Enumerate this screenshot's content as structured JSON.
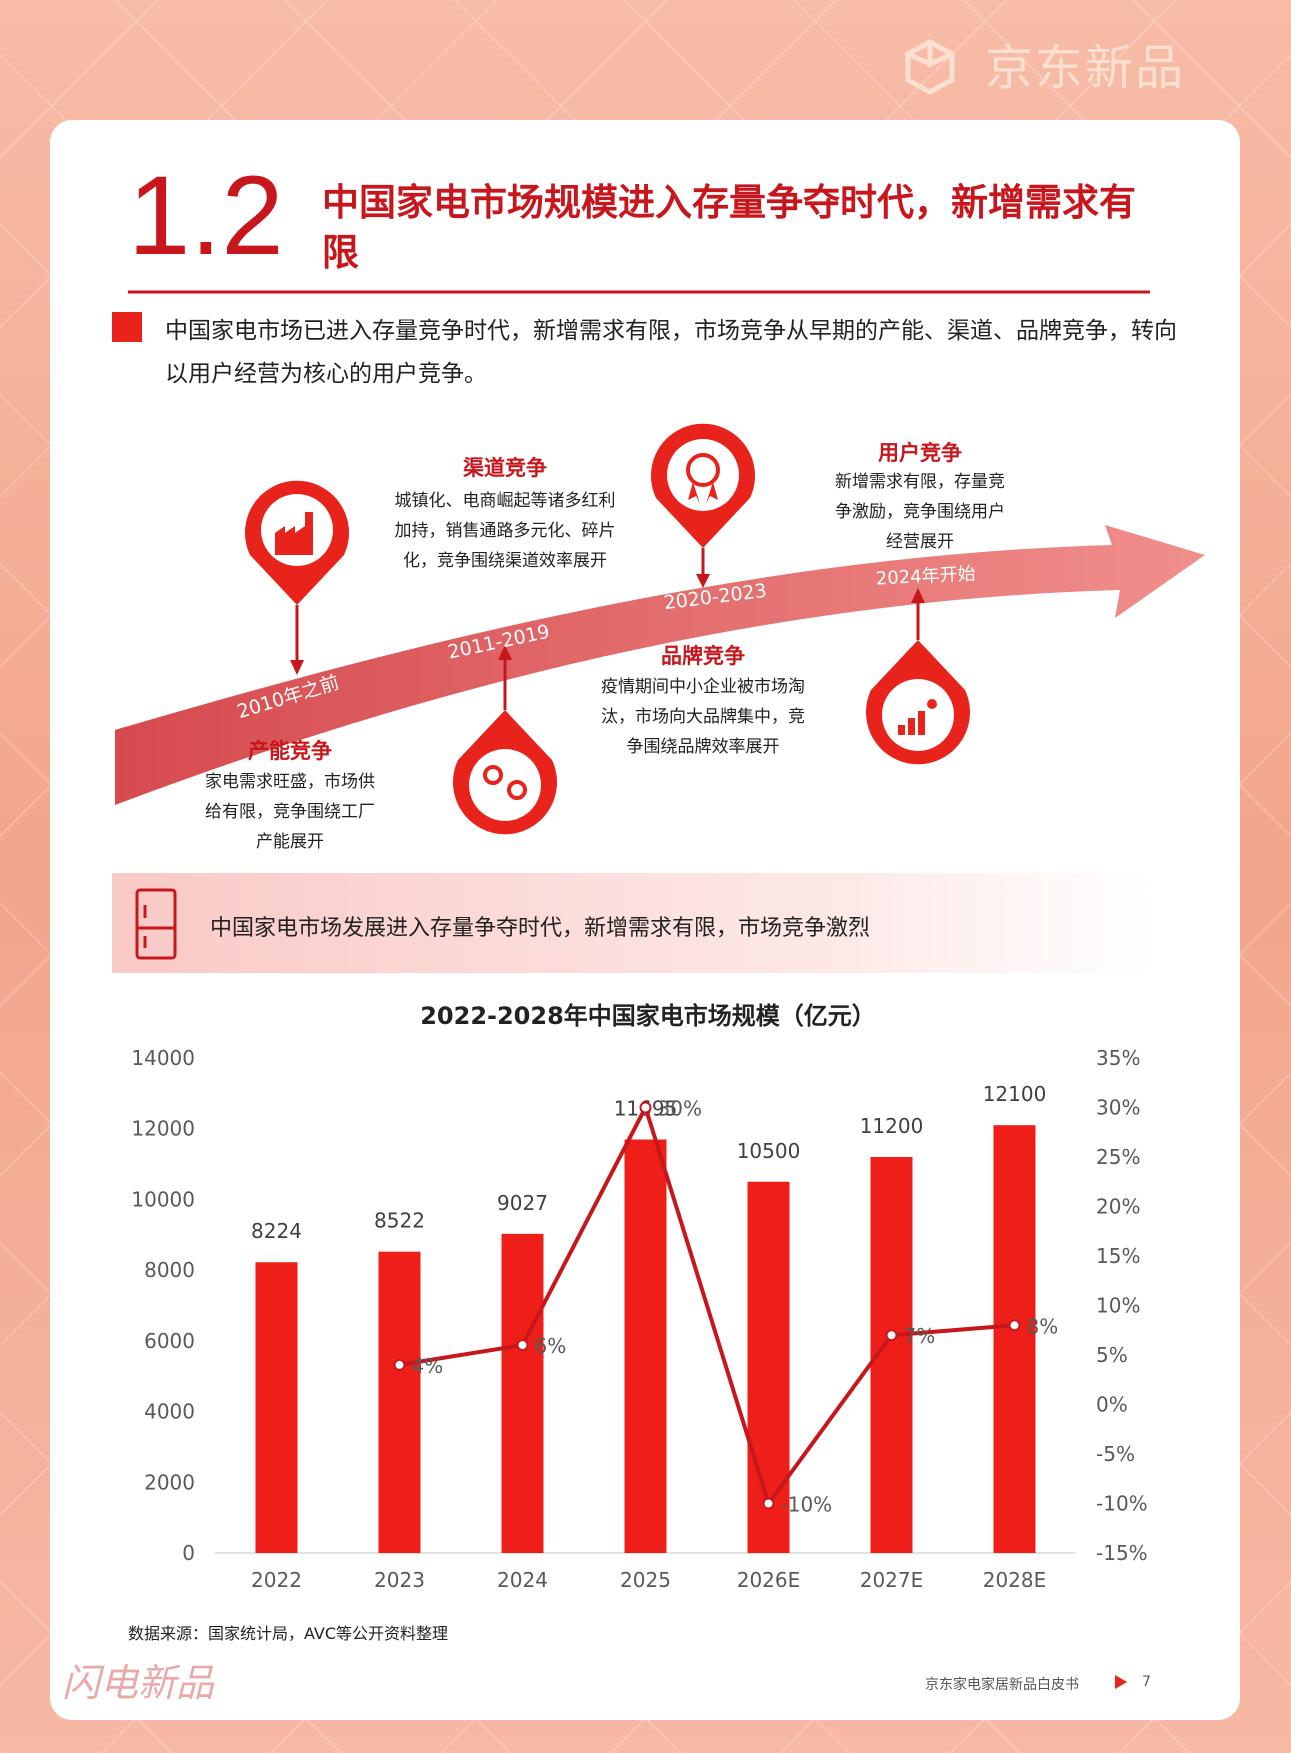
{
  "header": {
    "brand": "京东新品"
  },
  "section": {
    "number": "1.2",
    "title": "中国家电市场规模进入存量争夺时代，新增需求有限"
  },
  "intro": "中国家电市场已进入存量竞争时代，新增需求有限，市场竞争从早期的产能、渠道、品牌竞争，转向以用户经营为核心的用户竞争。",
  "timeline": {
    "stages": [
      {
        "period": "2010年之前",
        "title": "产能竞争",
        "text": "家电需求旺盛，市场供给有限，竞争围绕工厂产能展开"
      },
      {
        "period": "2011-2019",
        "title": "渠道竞争",
        "text": "城镇化、电商崛起等诸多红利加持，销售通路多元化、碎片化，竞争围绕渠道效率展开"
      },
      {
        "period": "2020-2023",
        "title": "品牌竞争",
        "text": "疫情期间中小企业被市场淘汰，市场向大品牌集中，竞争围绕品牌效率展开"
      },
      {
        "period": "2024年开始",
        "title": "用户竞争",
        "text": "新增需求有限，存量竞争激励，竞争围绕用户经营展开"
      }
    ]
  },
  "banner": "中国家电市场发展进入存量争夺时代，新增需求有限，市场竞争激烈",
  "chart_data": {
    "type": "bar",
    "title": "2022-2028年中国家电市场规模（亿元）",
    "categories": [
      "2022",
      "2023",
      "2024",
      "2025",
      "2026E",
      "2027E",
      "2028E"
    ],
    "series": [
      {
        "type": "bar",
        "color": "#ee1f19",
        "values": [
          8224,
          8522,
          9027,
          11695,
          10500,
          11200,
          12100
        ]
      },
      {
        "type": "line",
        "axis": "y2",
        "color": "#c8161d",
        "values": [
          null,
          4,
          6,
          30,
          -10,
          7,
          8
        ],
        "value_labels": [
          null,
          "4%",
          "6%",
          "30%",
          "-10%",
          "7%",
          "8%"
        ]
      }
    ],
    "ylim": [
      0,
      14000
    ],
    "yticks": [
      0,
      2000,
      4000,
      6000,
      8000,
      10000,
      12000,
      14000
    ],
    "y2lim": [
      -15,
      35
    ],
    "y2ticks": [
      {
        "value": -15,
        "label": "-15%"
      },
      {
        "value": -10,
        "label": "-10%"
      },
      {
        "value": -5,
        "label": "-5%"
      },
      {
        "value": 0,
        "label": "0%"
      },
      {
        "value": 5,
        "label": "5%"
      },
      {
        "value": 10,
        "label": "10%"
      },
      {
        "value": 15,
        "label": "15%"
      },
      {
        "value": 20,
        "label": "20%"
      },
      {
        "value": 25,
        "label": "25%"
      },
      {
        "value": 30,
        "label": "30%"
      },
      {
        "value": 35,
        "label": "35%"
      }
    ],
    "grid": false
  },
  "source": "数据来源：国家统计局，AVC等公开资料整理",
  "footer": {
    "logo": "闪电新品",
    "doc": "京东家电家居新品白皮书",
    "page": "7"
  }
}
